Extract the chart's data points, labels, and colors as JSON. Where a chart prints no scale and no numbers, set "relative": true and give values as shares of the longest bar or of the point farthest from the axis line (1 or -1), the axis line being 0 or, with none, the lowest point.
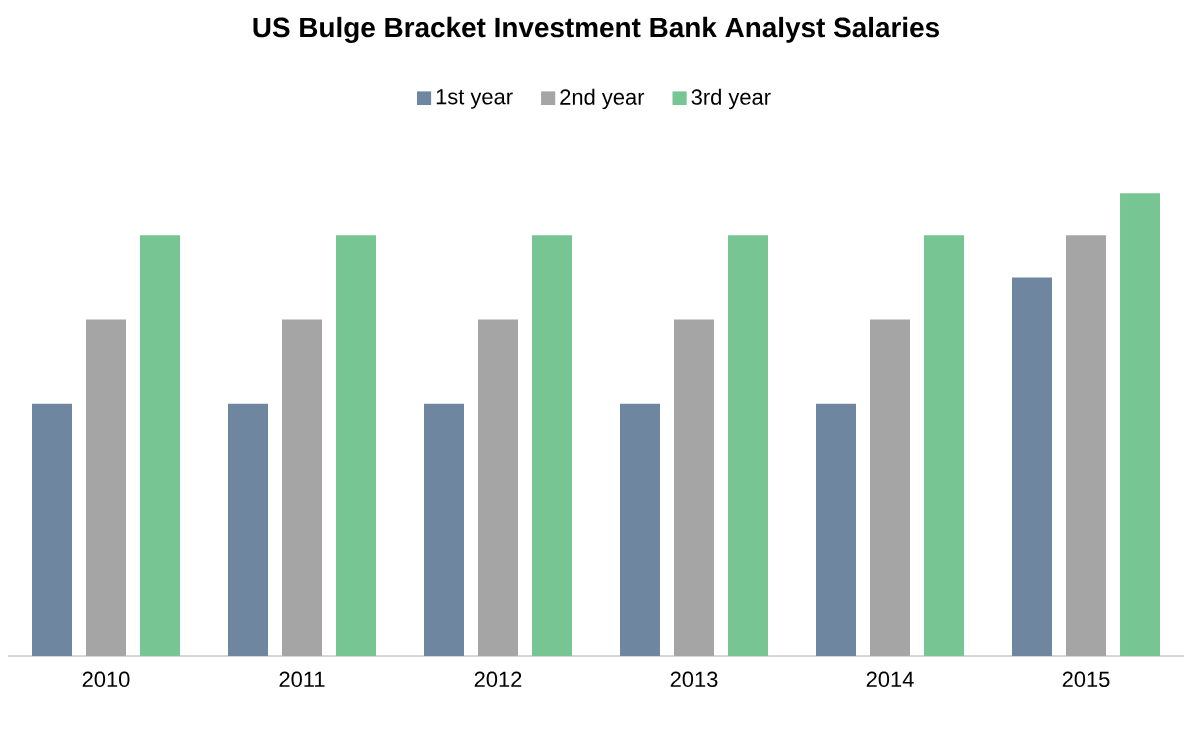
{
  "chart_data": {
    "type": "bar",
    "title": "US Bulge Bracket Investment Bank Analyst Salaries",
    "relative": true,
    "legend": "top",
    "categories": [
      "2010",
      "2011",
      "2012",
      "2013",
      "2014",
      "2015"
    ],
    "series": [
      {
        "name": "1st year",
        "color": "#6f86a0",
        "values": [
          0.545,
          0.545,
          0.545,
          0.545,
          0.545,
          0.818
        ]
      },
      {
        "name": "2nd year",
        "color": "#a5a5a5",
        "values": [
          0.727,
          0.727,
          0.727,
          0.727,
          0.727,
          0.909
        ]
      },
      {
        "name": "3rd year",
        "color": "#77c593",
        "values": [
          0.909,
          0.909,
          0.909,
          0.909,
          0.909,
          1
        ]
      }
    ]
  }
}
